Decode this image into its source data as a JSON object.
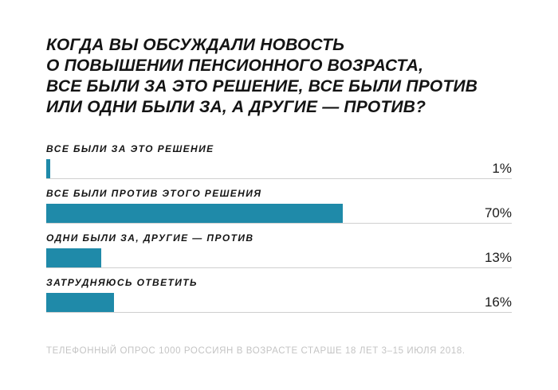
{
  "chart_data": {
    "type": "bar",
    "orientation": "horizontal",
    "title_lines": [
      "КОГДА ВЫ ОБСУЖДАЛИ НОВОСТЬ",
      "О ПОВЫШЕНИИ ПЕНСИОННОГО ВОЗРАСТА,",
      "ВСЕ БЫЛИ ЗА ЭТО РЕШЕНИЕ, ВСЕ БЫЛИ ПРОТИВ",
      "ИЛИ ОДНИ БЫЛИ ЗА, А ДРУГИЕ — ПРОТИВ?"
    ],
    "categories": [
      "ВСЕ БЫЛИ ЗА ЭТО РЕШЕНИЕ",
      "ВСЕ БЫЛИ ПРОТИВ ЭТОГО РЕШЕНИЯ",
      "ОДНИ БЫЛИ ЗА, ДРУГИЕ — ПРОТИВ",
      "ЗАТРУДНЯЮСЬ ОТВЕТИТЬ"
    ],
    "values": [
      1,
      70,
      13,
      16
    ],
    "value_labels": [
      "1%",
      "70%",
      "13%",
      "16%"
    ],
    "xlim": [
      0,
      110
    ],
    "bar_color": "#1f8aa9",
    "grid": false,
    "legend": "none",
    "note": "ТЕЛЕФОННЫЙ ОПРОС 1000 РОССИЯН В ВОЗРАСТЕ СТАРШЕ 18 ЛЕТ 3–15 ИЮЛЯ 2018."
  }
}
